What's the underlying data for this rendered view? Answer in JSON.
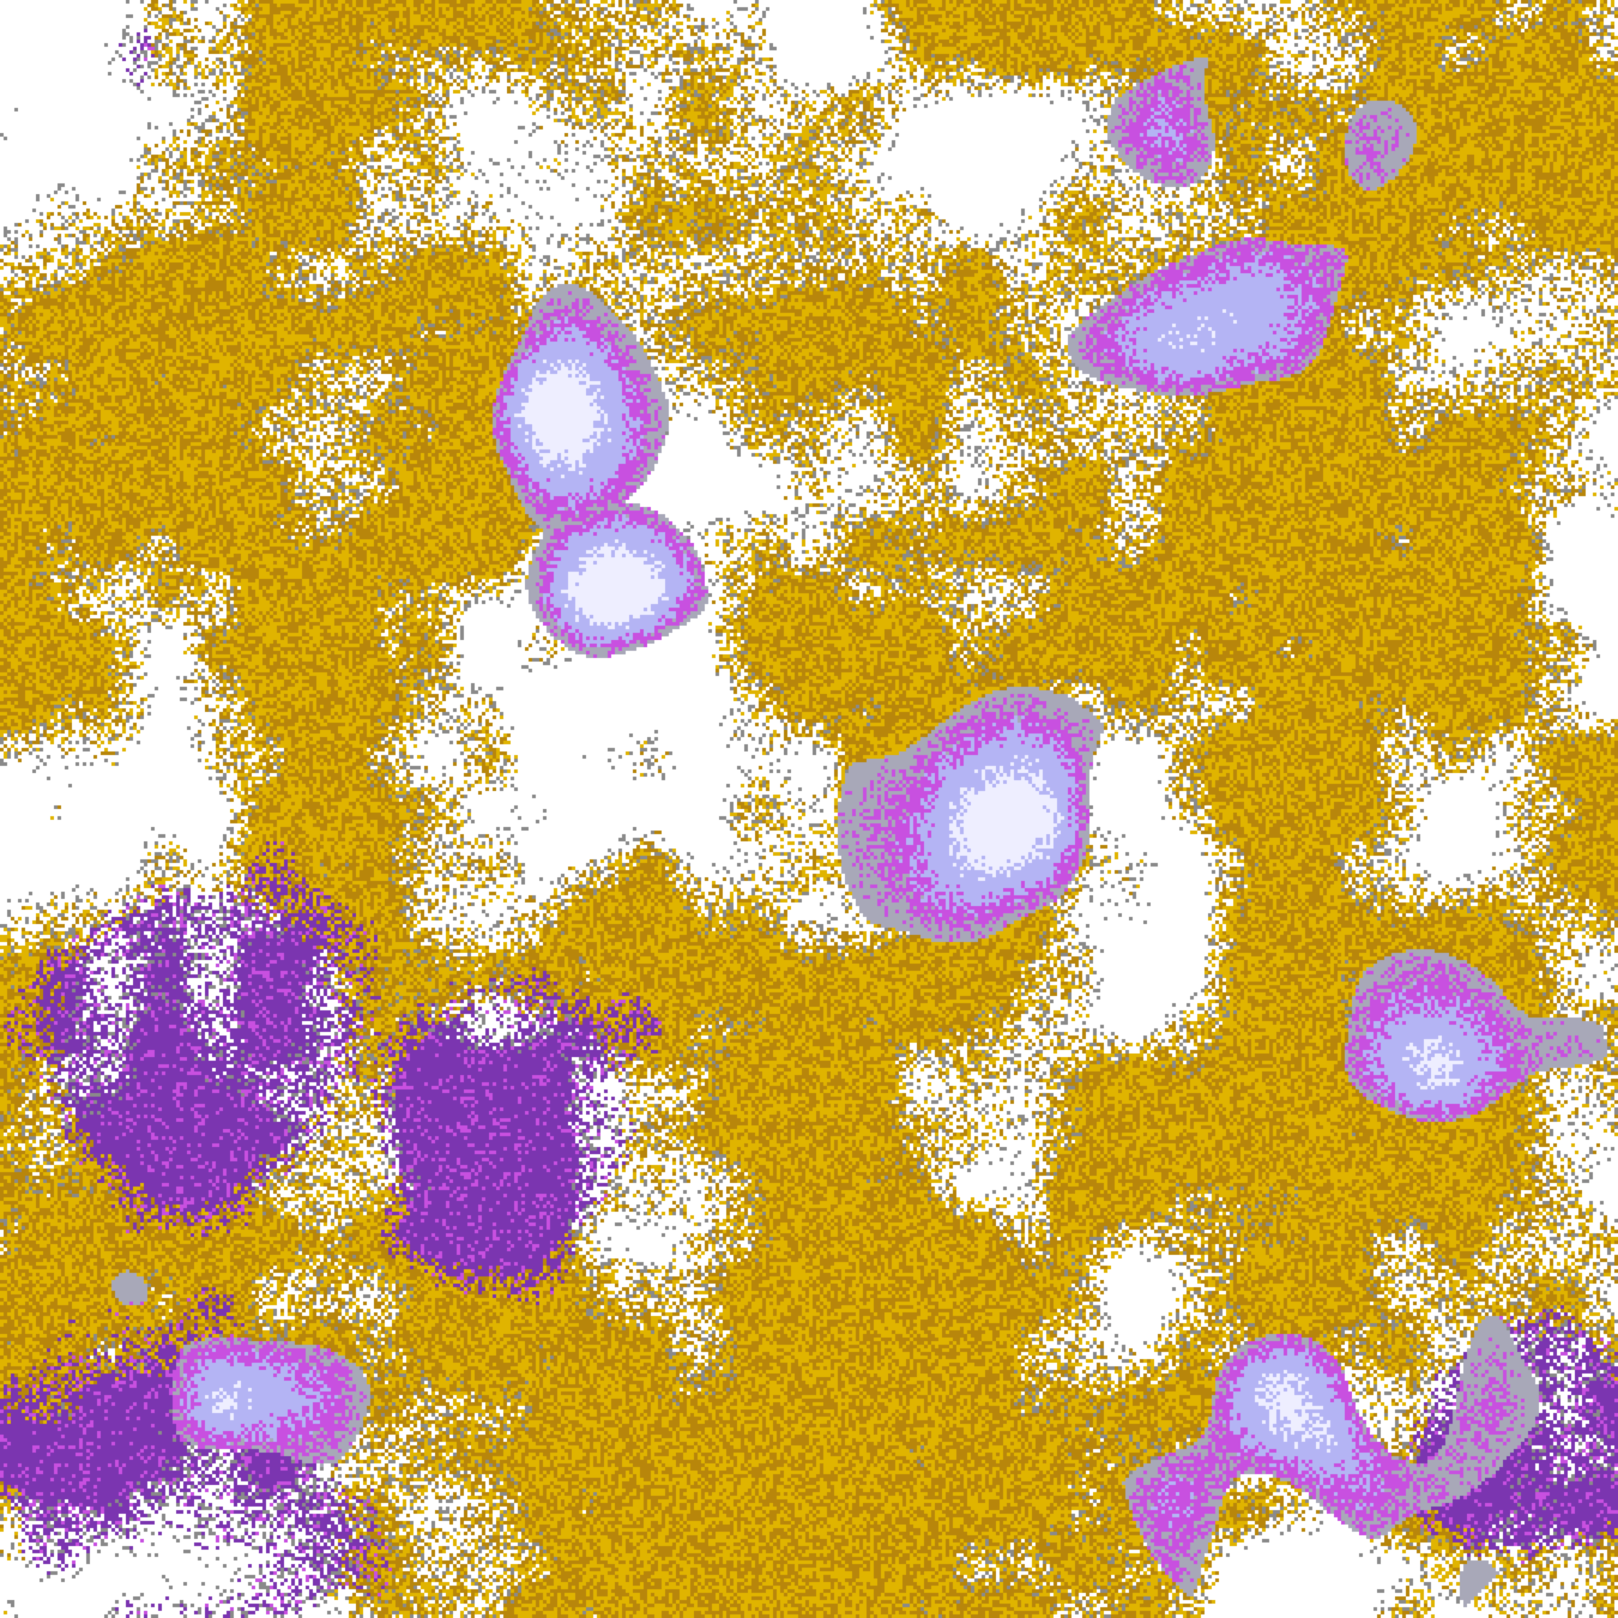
{
  "map": {
    "kind": "satellite cloud classification imagery",
    "palette": {
      "clear": "#ffffff",
      "edge": "#8a8a8a",
      "gold_dark": "#b8860b",
      "gold_light": "#e0b400",
      "purple": "#7b35b0",
      "magenta": "#c850e0",
      "lavender": "#b4b4f4",
      "pale": "#eeeeff",
      "gray_cloud": "#a8a8b8"
    }
  }
}
